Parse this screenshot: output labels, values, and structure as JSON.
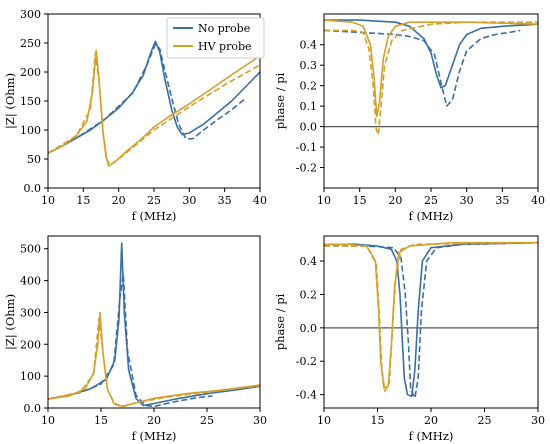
{
  "colors": {
    "no_probe": "#3a6ea5",
    "hv_probe": "#d4a02a",
    "zero_line": "#555555"
  },
  "chart_data": [
    {
      "type": "line",
      "xlabel": "f (MHz)",
      "ylabel": "|Z| (Ohm)",
      "xlim": [
        10,
        40
      ],
      "ylim": [
        0,
        300
      ],
      "xticks": [
        10,
        15,
        20,
        25,
        30,
        35,
        40
      ],
      "yticks": [
        0,
        50,
        100,
        150,
        200,
        250,
        300
      ],
      "legend": {
        "placement": "top-right",
        "entries": [
          "No probe",
          "HV probe"
        ]
      },
      "series": [
        {
          "name": "No probe",
          "style": "solid",
          "color_key": "no_probe",
          "points": [
            [
              10,
              60
            ],
            [
              12,
              72
            ],
            [
              14,
              86
            ],
            [
              16,
              100
            ],
            [
              18,
              118
            ],
            [
              20,
              138
            ],
            [
              22,
              165
            ],
            [
              23.5,
              195
            ],
            [
              24.5,
              232
            ],
            [
              25.2,
              253
            ],
            [
              25.8,
              235
            ],
            [
              26.5,
              190
            ],
            [
              27.5,
              135
            ],
            [
              28.3,
              105
            ],
            [
              29,
              92
            ],
            [
              30,
              95
            ],
            [
              32,
              110
            ],
            [
              34,
              130
            ],
            [
              36,
              150
            ],
            [
              38,
              175
            ],
            [
              40,
              200
            ]
          ]
        },
        {
          "style": "dashed",
          "color_key": "no_probe",
          "points": [
            [
              10,
              60
            ],
            [
              14,
              86
            ],
            [
              18,
              118
            ],
            [
              22,
              164
            ],
            [
              24,
              212
            ],
            [
              25.2,
              248
            ],
            [
              25.8,
              240
            ],
            [
              26.5,
              205
            ],
            [
              27.5,
              155
            ],
            [
              28.5,
              110
            ],
            [
              29.5,
              85
            ],
            [
              30.5,
              85
            ],
            [
              32,
              100
            ],
            [
              34,
              118
            ],
            [
              36,
              135
            ],
            [
              38,
              155
            ]
          ]
        },
        {
          "name": "HV probe",
          "style": "solid",
          "color_key": "hv_probe",
          "points": [
            [
              10,
              60
            ],
            [
              12,
              72
            ],
            [
              14,
              90
            ],
            [
              15.5,
              115
            ],
            [
              16.3,
              165
            ],
            [
              16.8,
              237
            ],
            [
              17.2,
              190
            ],
            [
              17.8,
              95
            ],
            [
              18.2,
              55
            ],
            [
              18.6,
              38
            ],
            [
              19.5,
              45
            ],
            [
              21,
              62
            ],
            [
              23,
              82
            ],
            [
              25,
              105
            ],
            [
              27,
              122
            ],
            [
              30,
              145
            ],
            [
              33,
              170
            ],
            [
              36,
              195
            ],
            [
              40,
              228
            ]
          ]
        },
        {
          "style": "dashed",
          "color_key": "hv_probe",
          "points": [
            [
              10,
              60
            ],
            [
              14,
              90
            ],
            [
              16,
              135
            ],
            [
              16.7,
              232
            ],
            [
              17.2,
              185
            ],
            [
              17.8,
              95
            ],
            [
              18.3,
              50
            ],
            [
              18.8,
              40
            ],
            [
              20,
              50
            ],
            [
              22,
              70
            ],
            [
              25,
              100
            ],
            [
              30,
              140
            ],
            [
              35,
              178
            ],
            [
              40,
              212
            ]
          ]
        }
      ]
    },
    {
      "type": "line",
      "xlabel": "f (MHz)",
      "ylabel": "phase / pi",
      "xlim": [
        10,
        40
      ],
      "ylim": [
        -0.3,
        0.55
      ],
      "xticks": [
        10,
        15,
        20,
        25,
        30,
        35,
        40
      ],
      "yticks": [
        -0.2,
        -0.1,
        0.0,
        0.1,
        0.2,
        0.3,
        0.4
      ],
      "hline": 0.0,
      "series": [
        {
          "style": "solid",
          "color_key": "no_probe",
          "points": [
            [
              10,
              0.52
            ],
            [
              15,
              0.52
            ],
            [
              20,
              0.51
            ],
            [
              22,
              0.49
            ],
            [
              24,
              0.43
            ],
            [
              25,
              0.36
            ],
            [
              25.8,
              0.25
            ],
            [
              26.4,
              0.19
            ],
            [
              27,
              0.2
            ],
            [
              28,
              0.3
            ],
            [
              29,
              0.4
            ],
            [
              30,
              0.45
            ],
            [
              32,
              0.48
            ],
            [
              35,
              0.49
            ],
            [
              40,
              0.5
            ]
          ]
        },
        {
          "style": "dashed",
          "color_key": "no_probe",
          "points": [
            [
              10,
              0.47
            ],
            [
              15,
              0.46
            ],
            [
              20,
              0.45
            ],
            [
              22,
              0.44
            ],
            [
              24,
              0.42
            ],
            [
              25.5,
              0.35
            ],
            [
              26.5,
              0.2
            ],
            [
              27.2,
              0.1
            ],
            [
              28,
              0.13
            ],
            [
              29,
              0.27
            ],
            [
              30,
              0.37
            ],
            [
              32,
              0.43
            ],
            [
              34,
              0.45
            ],
            [
              36,
              0.46
            ],
            [
              37.5,
              0.47
            ]
          ]
        },
        {
          "style": "solid",
          "color_key": "hv_probe",
          "points": [
            [
              10,
              0.52
            ],
            [
              14,
              0.51
            ],
            [
              15.5,
              0.49
            ],
            [
              16.5,
              0.4
            ],
            [
              17,
              0.25
            ],
            [
              17.4,
              0.05
            ],
            [
              17.8,
              0.12
            ],
            [
              18.3,
              0.33
            ],
            [
              19,
              0.44
            ],
            [
              20,
              0.49
            ],
            [
              22,
              0.51
            ],
            [
              30,
              0.51
            ],
            [
              40,
              0.5
            ]
          ]
        },
        {
          "style": "dashed",
          "color_key": "hv_probe",
          "points": [
            [
              10,
              0.47
            ],
            [
              14,
              0.47
            ],
            [
              15.5,
              0.46
            ],
            [
              16.3,
              0.38
            ],
            [
              16.9,
              0.2
            ],
            [
              17.3,
              -0.01
            ],
            [
              17.6,
              -0.04
            ],
            [
              18,
              0.1
            ],
            [
              18.5,
              0.3
            ],
            [
              19.5,
              0.42
            ],
            [
              21,
              0.47
            ],
            [
              25,
              0.5
            ],
            [
              30,
              0.51
            ],
            [
              40,
              0.51
            ]
          ]
        }
      ]
    },
    {
      "type": "line",
      "xlabel": "f (MHz)",
      "ylabel": "|Z| (Ohm)",
      "xlim": [
        10,
        30
      ],
      "ylim": [
        0,
        540
      ],
      "xticks": [
        10,
        15,
        20,
        25,
        30
      ],
      "yticks": [
        0,
        100,
        200,
        300,
        400,
        500
      ],
      "series": [
        {
          "style": "solid",
          "color_key": "no_probe",
          "points": [
            [
              10,
              28
            ],
            [
              12,
              40
            ],
            [
              14,
              60
            ],
            [
              15.5,
              90
            ],
            [
              16.3,
              150
            ],
            [
              16.7,
              280
            ],
            [
              16.95,
              518
            ],
            [
              17.2,
              300
            ],
            [
              17.6,
              120
            ],
            [
              18.3,
              30
            ],
            [
              19,
              8
            ],
            [
              20,
              14
            ],
            [
              22,
              28
            ],
            [
              25,
              45
            ],
            [
              28,
              58
            ],
            [
              30,
              68
            ]
          ]
        },
        {
          "style": "dashed",
          "color_key": "no_probe",
          "points": [
            [
              10,
              28
            ],
            [
              13,
              48
            ],
            [
              15,
              75
            ],
            [
              16.2,
              135
            ],
            [
              16.8,
              350
            ],
            [
              17.1,
              420
            ],
            [
              17.5,
              180
            ],
            [
              18.3,
              40
            ],
            [
              19.2,
              8
            ],
            [
              20,
              5
            ],
            [
              22,
              20
            ],
            [
              24,
              32
            ],
            [
              25.5,
              38
            ]
          ]
        },
        {
          "style": "solid",
          "color_key": "hv_probe",
          "points": [
            [
              10,
              28
            ],
            [
              12,
              38
            ],
            [
              13.5,
              60
            ],
            [
              14.3,
              110
            ],
            [
              14.7,
              200
            ],
            [
              14.9,
              300
            ],
            [
              15.2,
              170
            ],
            [
              15.6,
              60
            ],
            [
              16.2,
              15
            ],
            [
              17,
              5
            ],
            [
              18,
              14
            ],
            [
              20,
              30
            ],
            [
              23,
              45
            ],
            [
              26,
              55
            ],
            [
              30,
              72
            ]
          ]
        },
        {
          "style": "dashed",
          "color_key": "hv_probe",
          "points": [
            [
              10,
              28
            ],
            [
              13,
              50
            ],
            [
              14.3,
              105
            ],
            [
              14.8,
              280
            ],
            [
              15.1,
              200
            ],
            [
              15.6,
              60
            ],
            [
              16.3,
              12
            ],
            [
              17,
              4
            ],
            [
              18.5,
              18
            ],
            [
              21,
              33
            ],
            [
              25,
              50
            ],
            [
              30,
              70
            ]
          ]
        }
      ]
    },
    {
      "type": "line",
      "xlabel": "f (MHz)",
      "ylabel": "phase / pi",
      "xlim": [
        10,
        30
      ],
      "ylim": [
        -0.48,
        0.55
      ],
      "xticks": [
        10,
        15,
        20,
        25,
        30
      ],
      "yticks": [
        -0.4,
        -0.2,
        0.0,
        0.2,
        0.4
      ],
      "hline": 0.0,
      "series": [
        {
          "style": "solid",
          "color_key": "no_probe",
          "points": [
            [
              10,
              0.5
            ],
            [
              13,
              0.5
            ],
            [
              15,
              0.49
            ],
            [
              16.3,
              0.47
            ],
            [
              16.8,
              0.4
            ],
            [
              17.1,
              0.2
            ],
            [
              17.3,
              -0.05
            ],
            [
              17.5,
              -0.3
            ],
            [
              17.8,
              -0.4
            ],
            [
              18.2,
              -0.41
            ],
            [
              18.5,
              -0.25
            ],
            [
              18.8,
              0.1
            ],
            [
              19.2,
              0.4
            ],
            [
              20,
              0.48
            ],
            [
              23,
              0.5
            ],
            [
              30,
              0.51
            ]
          ]
        },
        {
          "style": "dashed",
          "color_key": "no_probe",
          "points": [
            [
              10,
              0.49
            ],
            [
              14,
              0.49
            ],
            [
              16.5,
              0.48
            ],
            [
              17.2,
              0.42
            ],
            [
              17.6,
              0.2
            ],
            [
              17.9,
              -0.1
            ],
            [
              18.1,
              -0.37
            ],
            [
              18.5,
              -0.42
            ],
            [
              18.8,
              -0.3
            ],
            [
              19.1,
              0.1
            ],
            [
              19.6,
              0.4
            ],
            [
              20.5,
              0.48
            ],
            [
              23,
              0.5
            ],
            [
              30,
              0.51
            ]
          ]
        },
        {
          "style": "solid",
          "color_key": "hv_probe",
          "points": [
            [
              10,
              0.5
            ],
            [
              12,
              0.5
            ],
            [
              14,
              0.49
            ],
            [
              14.8,
              0.4
            ],
            [
              15.1,
              0.1
            ],
            [
              15.3,
              -0.2
            ],
            [
              15.6,
              -0.36
            ],
            [
              16,
              -0.35
            ],
            [
              16.3,
              -0.1
            ],
            [
              16.6,
              0.25
            ],
            [
              17,
              0.45
            ],
            [
              18,
              0.49
            ],
            [
              22,
              0.51
            ],
            [
              30,
              0.51
            ]
          ]
        },
        {
          "style": "dashed",
          "color_key": "hv_probe",
          "points": [
            [
              10,
              0.49
            ],
            [
              14,
              0.49
            ],
            [
              14.9,
              0.38
            ],
            [
              15.2,
              0.05
            ],
            [
              15.4,
              -0.25
            ],
            [
              15.7,
              -0.38
            ],
            [
              16.1,
              -0.33
            ],
            [
              16.4,
              0.0
            ],
            [
              16.7,
              0.3
            ],
            [
              17.2,
              0.47
            ],
            [
              18.5,
              0.5
            ],
            [
              30,
              0.51
            ]
          ]
        }
      ]
    }
  ]
}
